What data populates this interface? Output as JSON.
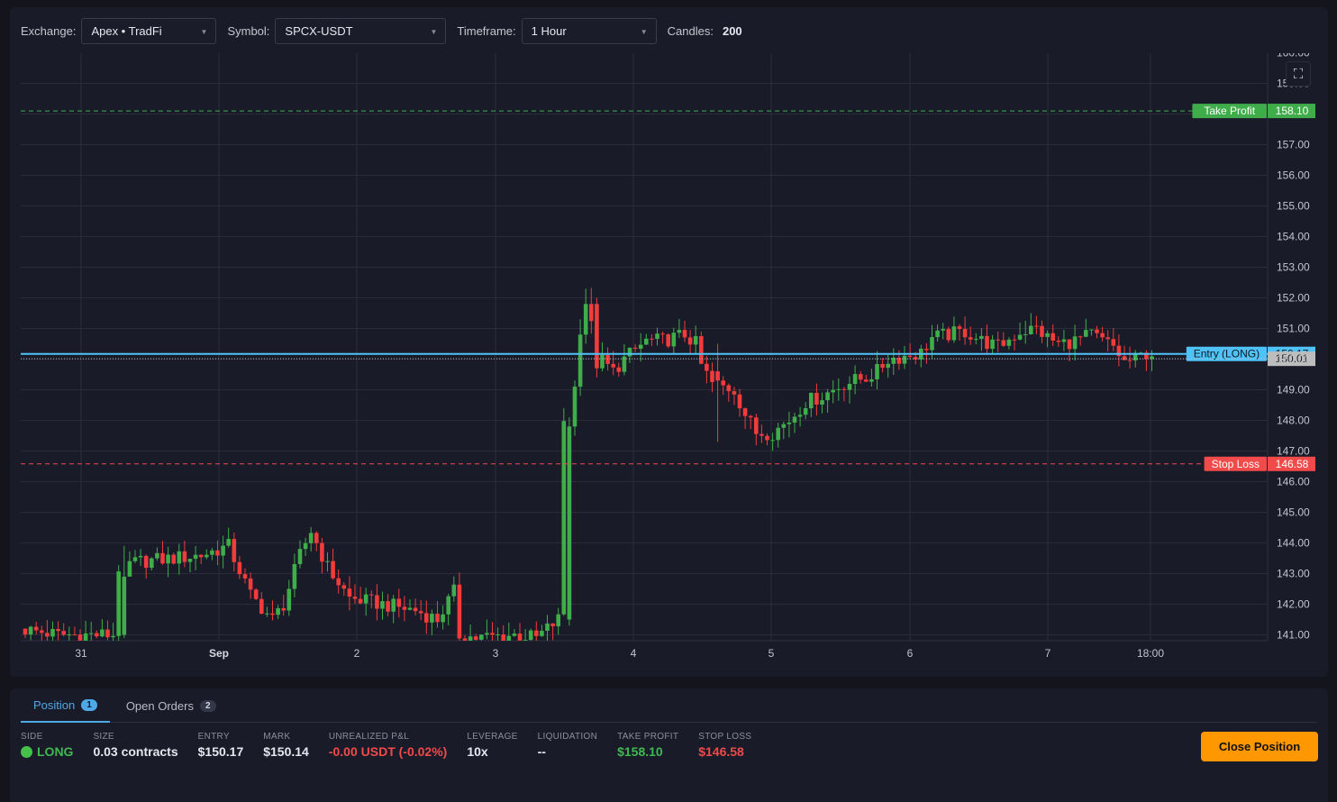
{
  "toolbar": {
    "exchange_label": "Exchange:",
    "exchange_value": "Apex • TradFi",
    "symbol_label": "Symbol:",
    "symbol_value": "SPCX-USDT",
    "timeframe_label": "Timeframe:",
    "timeframe_value": "1 Hour",
    "candles_label": "Candles:",
    "candles_value": "200",
    "expand_icon": "fullscreen-icon"
  },
  "chart_data": {
    "type": "candlestick",
    "ylim": [
      140.8,
      160.0
    ],
    "y_ticks": [
      "141.00",
      "142.00",
      "143.00",
      "144.00",
      "145.00",
      "146.00",
      "147.00",
      "148.00",
      "149.00",
      "150.00",
      "151.00",
      "152.00",
      "153.00",
      "154.00",
      "155.00",
      "156.00",
      "157.00",
      "159.00",
      "160.00"
    ],
    "x_ticks": [
      {
        "label": "31",
        "bold": false
      },
      {
        "label": "Sep",
        "bold": true
      },
      {
        "label": "2",
        "bold": false
      },
      {
        "label": "3",
        "bold": false
      },
      {
        "label": "4",
        "bold": false
      },
      {
        "label": "5",
        "bold": false
      },
      {
        "label": "6",
        "bold": false
      },
      {
        "label": "7",
        "bold": false
      },
      {
        "label": "18:00",
        "bold": false
      }
    ],
    "price_lines": [
      {
        "label": "Take Profit",
        "value": 158.1,
        "text": "158.10",
        "color": "#3fae4a",
        "style": "dashed"
      },
      {
        "label": "Entry (LONG)",
        "value": 150.17,
        "text": "150.17",
        "color": "#4fc3f7",
        "style": "solid"
      },
      {
        "label": "",
        "value": 150.01,
        "text": "150.01",
        "color": "#bdbdbd",
        "style": "dotted"
      },
      {
        "label": "Stop Loss",
        "value": 146.58,
        "text": "146.58",
        "color": "#f04a4a",
        "style": "dashed"
      }
    ],
    "colors": {
      "up": "#3fae4a",
      "down": "#f23b3b"
    },
    "anchors": [
      [
        0,
        141.2
      ],
      [
        7,
        141.0
      ],
      [
        17,
        141.0
      ],
      [
        18,
        143.2
      ],
      [
        22,
        143.4
      ],
      [
        28,
        143.5
      ],
      [
        33,
        143.6
      ],
      [
        38,
        143.9
      ],
      [
        42,
        142.3
      ],
      [
        46,
        141.5
      ],
      [
        48,
        142.0
      ],
      [
        51,
        143.6
      ],
      [
        53,
        144.4
      ],
      [
        56,
        143.2
      ],
      [
        60,
        142.2
      ],
      [
        66,
        142.0
      ],
      [
        72,
        141.8
      ],
      [
        76,
        141.5
      ],
      [
        79,
        142.4
      ],
      [
        80,
        141.0
      ],
      [
        83,
        140.9
      ],
      [
        90,
        141.0
      ],
      [
        94,
        140.9
      ],
      [
        98,
        141.5
      ],
      [
        99,
        148.0
      ],
      [
        100,
        149.0
      ],
      [
        101,
        150.0
      ],
      [
        103,
        152.0
      ],
      [
        105,
        150.1
      ],
      [
        108,
        149.6
      ],
      [
        110,
        150.0
      ],
      [
        114,
        150.6
      ],
      [
        117,
        150.6
      ],
      [
        121,
        150.8
      ],
      [
        123,
        150.5
      ],
      [
        124,
        149.8
      ],
      [
        126,
        149.2
      ],
      [
        130,
        149.0
      ],
      [
        132,
        148.2
      ],
      [
        134,
        147.6
      ],
      [
        137,
        147.6
      ],
      [
        140,
        148.0
      ],
      [
        143,
        148.6
      ],
      [
        146,
        148.8
      ],
      [
        150,
        149.2
      ],
      [
        154,
        149.4
      ],
      [
        156,
        149.6
      ],
      [
        158,
        150.0
      ],
      [
        161,
        150.1
      ],
      [
        164,
        150.2
      ],
      [
        166,
        150.7
      ],
      [
        169,
        150.8
      ],
      [
        172,
        150.9
      ],
      [
        175,
        150.6
      ],
      [
        178,
        150.4
      ],
      [
        182,
        150.9
      ],
      [
        185,
        151.0
      ],
      [
        187,
        150.7
      ],
      [
        189,
        150.5
      ],
      [
        192,
        150.6
      ],
      [
        195,
        150.8
      ],
      [
        197,
        150.6
      ],
      [
        199,
        150.4
      ],
      [
        201,
        149.9
      ],
      [
        203,
        150.0
      ],
      [
        205,
        150.2
      ]
    ],
    "events": [
      {
        "i": 18,
        "o": 141.0,
        "h": 143.9,
        "l": 140.9,
        "c": 142.9
      },
      {
        "i": 99,
        "o": 141.5,
        "h": 148.1,
        "l": 141.3,
        "c": 147.8
      },
      {
        "i": 100,
        "o": 147.8,
        "h": 149.3,
        "l": 147.5,
        "c": 149.1
      },
      {
        "i": 101,
        "o": 149.1,
        "h": 151.3,
        "l": 148.8,
        "c": 150.8
      },
      {
        "i": 102,
        "o": 150.8,
        "h": 152.3,
        "l": 150.5,
        "c": 151.8
      },
      {
        "i": 104,
        "o": 151.8,
        "h": 152.0,
        "l": 149.4,
        "c": 149.7
      },
      {
        "i": 126,
        "o": 149.6,
        "h": 150.5,
        "l": 147.3,
        "c": 149.3
      }
    ]
  },
  "tabs": [
    {
      "label": "Position",
      "count": "1"
    },
    {
      "label": "Open Orders",
      "count": "2"
    }
  ],
  "position": {
    "side_label": "SIDE",
    "side_value": "LONG",
    "size_label": "SIZE",
    "size_value": "0.03 contracts",
    "entry_label": "ENTRY",
    "entry_value": "$150.17",
    "mark_label": "MARK",
    "mark_value": "$150.14",
    "pnl_label": "UNREALIZED P&L",
    "pnl_value": "-0.00 USDT (-0.02%)",
    "leverage_label": "LEVERAGE",
    "leverage_value": "10x",
    "liq_label": "LIQUIDATION",
    "liq_value": "--",
    "tp_label": "TAKE PROFIT",
    "tp_value": "$158.10",
    "sl_label": "STOP LOSS",
    "sl_value": "$146.58",
    "close_button": "Close Position"
  }
}
